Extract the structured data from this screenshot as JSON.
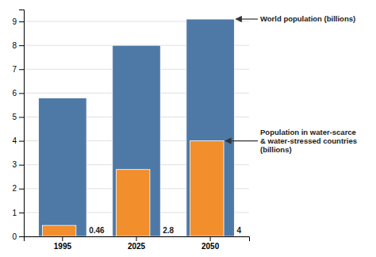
{
  "chart_data": {
    "type": "bar",
    "categories": [
      "1995",
      "2025",
      "2050"
    ],
    "series": [
      {
        "name": "World population (billions)",
        "values": [
          5.8,
          8.0,
          9.1
        ]
      },
      {
        "name": "Population in water-scarce\n& water-stressed countries\n(billions)",
        "values": [
          0.46,
          2.8,
          4.0
        ],
        "data_labels": true,
        "value_labels": [
          "0.46",
          "2.8",
          "4"
        ]
      }
    ],
    "ylim": [
      0,
      9.5
    ],
    "yticks": [
      0,
      1,
      2,
      3,
      4,
      5,
      6,
      7,
      8,
      9
    ],
    "grid": true
  }
}
